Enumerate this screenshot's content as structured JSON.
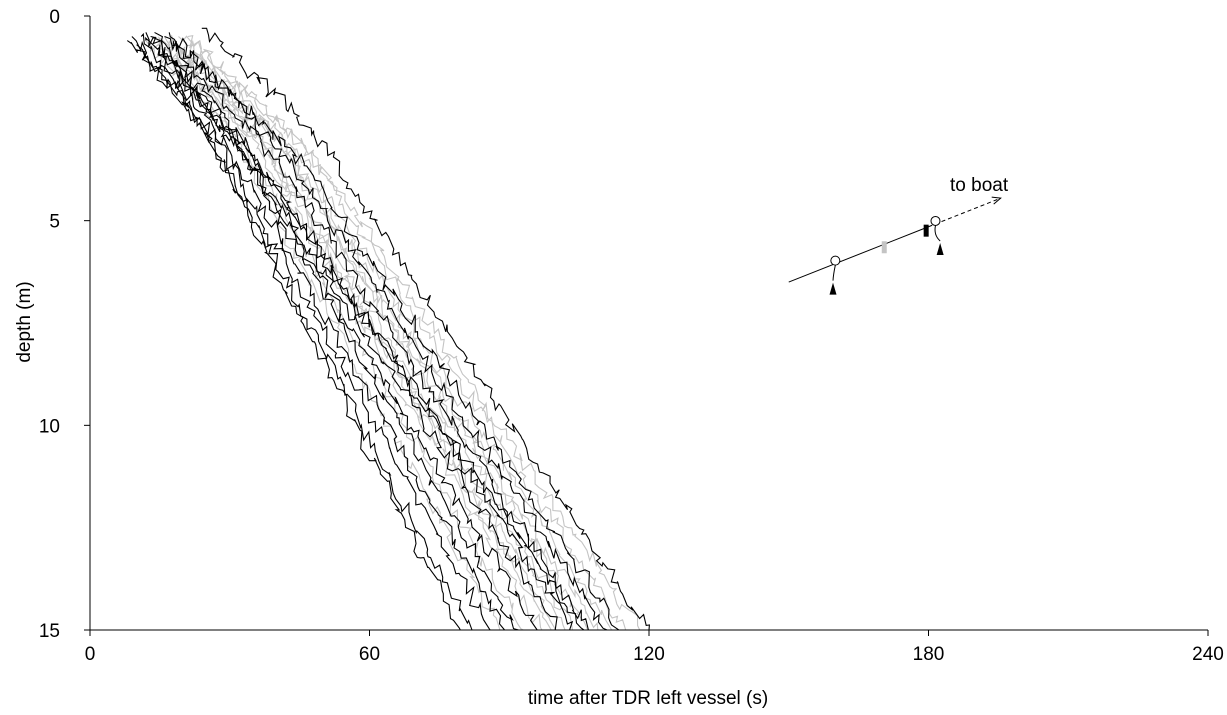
{
  "chart_data": {
    "type": "line",
    "title": "",
    "xlabel": "time after TDR left vessel (s)",
    "ylabel": "depth (m)",
    "xlim": [
      0,
      240
    ],
    "ylim": [
      0,
      15
    ],
    "y_inverted": true,
    "x_ticks": [
      "0",
      "60",
      "120",
      "180",
      "240"
    ],
    "y_ticks": [
      "0",
      "5",
      "10",
      "15"
    ],
    "grid": false,
    "legend": "none",
    "colors": {
      "dark": "#000000",
      "light": "#c4c4c4"
    },
    "series_dark": [
      {
        "x": [
          8,
          23,
          79.5
        ],
        "y": [
          0.6,
          2.5,
          15
        ]
      },
      {
        "x": [
          9,
          24,
          82
        ],
        "y": [
          0.5,
          2.6,
          15
        ]
      },
      {
        "x": [
          10,
          27,
          86
        ],
        "y": [
          0.7,
          3.0,
          15
        ]
      },
      {
        "x": [
          11,
          30,
          89
        ],
        "y": [
          0.5,
          3.3,
          15
        ]
      },
      {
        "x": [
          12,
          31,
          92
        ],
        "y": [
          0.4,
          3.0,
          15
        ]
      },
      {
        "x": [
          12,
          33,
          96
        ],
        "y": [
          0.6,
          3.4,
          15
        ]
      },
      {
        "x": [
          13,
          34,
          101
        ],
        "y": [
          0.5,
          3.5,
          15
        ]
      },
      {
        "x": [
          14,
          34,
          104
        ],
        "y": [
          0.4,
          3.2,
          15
        ]
      },
      {
        "x": [
          15,
          36,
          106
        ],
        "y": [
          0.7,
          3.6,
          15
        ]
      },
      {
        "x": [
          16,
          40,
          107
        ],
        "y": [
          0.5,
          3.5,
          15
        ]
      },
      {
        "x": [
          17,
          42,
          111
        ],
        "y": [
          0.4,
          3.4,
          15
        ]
      },
      {
        "x": [
          18,
          46,
          114
        ],
        "y": [
          0.6,
          3.6,
          15
        ]
      },
      {
        "x": [
          24,
          48,
          120
        ],
        "y": [
          0.3,
          2.8,
          15
        ]
      }
    ],
    "series_light": [
      {
        "x": [
          12,
          30,
          88
        ],
        "y": [
          0.6,
          2.8,
          15
        ]
      },
      {
        "x": [
          13,
          32,
          93
        ],
        "y": [
          0.7,
          2.9,
          15
        ]
      },
      {
        "x": [
          14,
          35,
          97
        ],
        "y": [
          0.5,
          3.0,
          15
        ]
      },
      {
        "x": [
          15,
          36,
          100
        ],
        "y": [
          0.6,
          2.9,
          15
        ]
      },
      {
        "x": [
          16,
          38,
          102
        ],
        "y": [
          0.5,
          3.1,
          15
        ]
      },
      {
        "x": [
          17,
          40,
          104
        ],
        "y": [
          0.6,
          3.0,
          15
        ]
      },
      {
        "x": [
          18,
          41,
          107
        ],
        "y": [
          0.7,
          3.2,
          15
        ]
      },
      {
        "x": [
          19,
          43,
          109
        ],
        "y": [
          0.5,
          3.3,
          15
        ]
      },
      {
        "x": [
          20,
          45,
          112
        ],
        "y": [
          0.6,
          3.4,
          15
        ]
      },
      {
        "x": [
          21,
          46,
          115
        ],
        "y": [
          0.5,
          3.2,
          15
        ]
      },
      {
        "x": [
          22,
          48,
          118
        ],
        "y": [
          0.6,
          3.4,
          15
        ]
      },
      {
        "x": [
          16,
          37,
          99
        ],
        "y": [
          0.8,
          3.1,
          15
        ]
      }
    ],
    "annotation": {
      "text": "to boat",
      "diagram": {
        "line_x": [
          150,
          195.5
        ],
        "line_y": [
          6.5,
          4.45
        ],
        "dashed_from_x": 180,
        "floats_x": [
          160,
          181.5
        ],
        "weights_x": [
          159.5,
          182.5
        ],
        "markers": [
          {
            "x": 170.5,
            "color": "#c4c4c4"
          },
          {
            "x": 179.5,
            "color": "#000000"
          }
        ]
      }
    }
  }
}
